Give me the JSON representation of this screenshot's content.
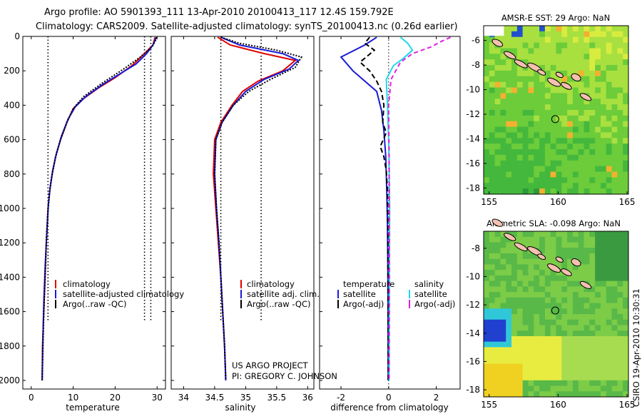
{
  "header": {
    "line1": "Argo profile: AO 5901393_111 13-Apr-2010 20100413_117 12.4S 159.792E",
    "line2": "Climatology: CARS2009. Satellite-adjusted climatology: synTS_20100413.nc (0.26d earlier)"
  },
  "credits": {
    "project": "US ARGO PROJECT",
    "pi": "PI: GREGORY C. JOHNSON",
    "timestamp": "CSIRO 19-Apr-2010 10:30:31"
  },
  "colors": {
    "climatology": "#e00000",
    "satellite": "#1a1ad6",
    "argo": "#000000",
    "salinity_satellite": "#22d8e8",
    "salinity_argo": "#e020e0"
  },
  "chart_data": [
    {
      "type": "line",
      "panel": "temperature",
      "xlabel": "temperature",
      "xlim": [
        -2,
        32
      ],
      "ylim": [
        2050,
        0
      ],
      "xticks": [
        0,
        10,
        20,
        30
      ],
      "yticks": [
        0,
        200,
        400,
        600,
        800,
        1000,
        1200,
        1400,
        1600,
        1800,
        2000
      ],
      "grid": false,
      "legend": {
        "placement": "lower-right",
        "entries": [
          "climatology",
          "satellite-adjusted climatology",
          "Argo(..raw -QC)"
        ]
      },
      "series": [
        {
          "name": "climatology",
          "points": [
            [
              29.5,
              5
            ],
            [
              29,
              50
            ],
            [
              27,
              100
            ],
            [
              24,
              170
            ],
            [
              20,
              240
            ],
            [
              16,
              300
            ],
            [
              12,
              370
            ],
            [
              10,
              420
            ],
            [
              8.5,
              500
            ],
            [
              7,
              600
            ],
            [
              5.8,
              700
            ],
            [
              5,
              800
            ],
            [
              4.4,
              900
            ],
            [
              4,
              1000
            ],
            [
              3.6,
              1200
            ],
            [
              3.3,
              1400
            ],
            [
              3,
              1600
            ],
            [
              2.7,
              1800
            ],
            [
              2.6,
              2000
            ]
          ]
        },
        {
          "name": "satellite-adjusted climatology",
          "points": [
            [
              29.8,
              5
            ],
            [
              29,
              50
            ],
            [
              27.5,
              100
            ],
            [
              25,
              160
            ],
            [
              21,
              220
            ],
            [
              17,
              280
            ],
            [
              13,
              350
            ],
            [
              10.5,
              410
            ],
            [
              8.8,
              480
            ],
            [
              7.2,
              580
            ],
            [
              6,
              680
            ],
            [
              5.1,
              780
            ],
            [
              4.5,
              880
            ],
            [
              4.1,
              980
            ],
            [
              3.7,
              1150
            ],
            [
              3.3,
              1350
            ],
            [
              3,
              1550
            ],
            [
              2.8,
              1750
            ],
            [
              2.6,
              2000
            ]
          ]
        },
        {
          "name": "Argo(..raw -QC)",
          "points": [
            [
              29.9,
              5
            ],
            [
              29.5,
              30
            ],
            [
              28.8,
              60
            ],
            [
              26,
              120
            ],
            [
              22,
              190
            ],
            [
              17,
              270
            ],
            [
              12.5,
              350
            ],
            [
              10,
              420
            ],
            [
              8.5,
              500
            ],
            [
              7,
              600
            ],
            [
              5.8,
              700
            ],
            [
              5,
              800
            ],
            [
              4.4,
              900
            ],
            [
              4,
              1000
            ],
            [
              3.6,
              1200
            ],
            [
              3.3,
              1400
            ],
            [
              3,
              1600
            ],
            [
              2.8,
              1800
            ],
            [
              2.6,
              2000
            ]
          ]
        }
      ],
      "reference_lines": {
        "x": [
          4,
          27,
          28.5
        ],
        "depth_range": [
          0,
          1650
        ]
      }
    },
    {
      "type": "line",
      "panel": "salinity",
      "xlabel": "salinity",
      "xlim": [
        33.8,
        36.1
      ],
      "ylim": [
        2050,
        0
      ],
      "xticks": [
        34,
        34.5,
        35,
        35.5,
        36
      ],
      "tick_labels": [
        "34",
        "34.5",
        "35",
        "35.5",
        "36"
      ],
      "grid": false,
      "legend": {
        "placement": "lower-right",
        "entries": [
          "climatology",
          "satellite adj. clim.",
          "Argo(..raw -QC)"
        ]
      },
      "series": [
        {
          "name": "climatology",
          "points": [
            [
              34.55,
              5
            ],
            [
              34.75,
              50
            ],
            [
              35.3,
              100
            ],
            [
              35.8,
              140
            ],
            [
              35.6,
              200
            ],
            [
              35.2,
              260
            ],
            [
              34.95,
              320
            ],
            [
              34.78,
              400
            ],
            [
              34.6,
              500
            ],
            [
              34.5,
              600
            ],
            [
              34.48,
              800
            ],
            [
              34.52,
              1000
            ],
            [
              34.56,
              1200
            ],
            [
              34.6,
              1400
            ],
            [
              34.63,
              1600
            ],
            [
              34.66,
              1800
            ],
            [
              34.68,
              2000
            ]
          ]
        },
        {
          "name": "satellite adj. clim.",
          "points": [
            [
              34.6,
              5
            ],
            [
              34.9,
              50
            ],
            [
              35.6,
              100
            ],
            [
              35.85,
              140
            ],
            [
              35.7,
              190
            ],
            [
              35.3,
              250
            ],
            [
              35.0,
              320
            ],
            [
              34.8,
              400
            ],
            [
              34.62,
              500
            ],
            [
              34.52,
              600
            ],
            [
              34.5,
              800
            ],
            [
              34.53,
              1000
            ],
            [
              34.57,
              1200
            ],
            [
              34.6,
              1400
            ],
            [
              34.63,
              1600
            ],
            [
              34.66,
              1800
            ],
            [
              34.68,
              2000
            ]
          ]
        },
        {
          "name": "Argo(..raw -QC)",
          "points": [
            [
              34.6,
              5
            ],
            [
              34.9,
              40
            ],
            [
              35.5,
              80
            ],
            [
              35.9,
              120
            ],
            [
              35.8,
              180
            ],
            [
              35.4,
              250
            ],
            [
              35.05,
              320
            ],
            [
              34.8,
              400
            ],
            [
              34.62,
              500
            ],
            [
              34.52,
              600
            ],
            [
              34.5,
              800
            ],
            [
              34.53,
              1000
            ],
            [
              34.57,
              1200
            ],
            [
              34.6,
              1400
            ],
            [
              34.63,
              1600
            ],
            [
              34.66,
              1800
            ],
            [
              34.68,
              2000
            ]
          ]
        }
      ],
      "reference_lines": {
        "x": [
          34.6,
          35.25
        ],
        "depth_range": [
          0,
          1650
        ]
      }
    },
    {
      "type": "line",
      "panel": "difference",
      "xlabel": "difference from climatology",
      "xlim": [
        -2.9,
        3
      ],
      "ylim": [
        2050,
        0
      ],
      "xticks": [
        -2,
        0,
        2
      ],
      "tick_labels": [
        "-2",
        "0",
        "2"
      ],
      "grid": false,
      "legend": {
        "placement": "lower-right",
        "headings": [
          "temperature",
          "salinity"
        ],
        "entries": [
          "satellite",
          "Argo(-adj)",
          "satellite",
          "Argo(-adj)"
        ]
      },
      "series": [
        {
          "name": "temperature satellite",
          "points": [
            [
              -0.5,
              5
            ],
            [
              -1.0,
              50
            ],
            [
              -2.0,
              120
            ],
            [
              -1.5,
              200
            ],
            [
              -0.5,
              320
            ],
            [
              -0.3,
              430
            ],
            [
              -0.2,
              550
            ],
            [
              -0.12,
              700
            ],
            [
              -0.08,
              900
            ],
            [
              -0.05,
              1100
            ],
            [
              -0.03,
              1400
            ],
            [
              -0.02,
              2000
            ]
          ]
        },
        {
          "name": "temperature Argo(-adj)",
          "points": [
            [
              -0.8,
              5
            ],
            [
              -1.0,
              40
            ],
            [
              -0.6,
              80
            ],
            [
              -1.2,
              150
            ],
            [
              -0.8,
              200
            ],
            [
              -0.5,
              260
            ],
            [
              -0.3,
              320
            ],
            [
              -0.2,
              400
            ],
            [
              -0.25,
              500
            ],
            [
              -0.1,
              560
            ],
            [
              -0.35,
              640
            ],
            [
              -0.2,
              700
            ],
            [
              -0.1,
              780
            ],
            [
              -0.05,
              900
            ],
            [
              -0.03,
              1200
            ],
            [
              -0.02,
              2000
            ]
          ]
        },
        {
          "name": "salinity satellite",
          "points": [
            [
              0.5,
              5
            ],
            [
              0.8,
              40
            ],
            [
              1.0,
              80
            ],
            [
              0.6,
              130
            ],
            [
              0.2,
              170
            ],
            [
              -0.1,
              250
            ],
            [
              -0.05,
              400
            ],
            [
              0.02,
              700
            ],
            [
              0.04,
              1000
            ],
            [
              0.03,
              1500
            ],
            [
              0.02,
              2000
            ]
          ]
        },
        {
          "name": "salinity Argo(-adj)",
          "points": [
            [
              2.6,
              5
            ],
            [
              2.2,
              30
            ],
            [
              1.8,
              60
            ],
            [
              1.0,
              100
            ],
            [
              0.5,
              150
            ],
            [
              0.1,
              250
            ],
            [
              0.0,
              400
            ],
            [
              0.02,
              700
            ],
            [
              0.03,
              1000
            ],
            [
              0.03,
              1500
            ],
            [
              0.02,
              2000
            ]
          ]
        }
      ]
    },
    {
      "type": "heatmap",
      "panel": "sst",
      "title": "AMSR-E SST: 29 Argo: NaN",
      "xlim": [
        154.6,
        165.1
      ],
      "ylim": [
        -18.5,
        -4.8
      ],
      "xticks": [
        155,
        160,
        165
      ],
      "yticks": [
        -6,
        -8,
        -10,
        -12,
        -14,
        -16,
        -18
      ],
      "argo_position": [
        159.792,
        -12.4
      ],
      "colors": [
        "#2a9a3a",
        "#44b83c",
        "#6ccc3a",
        "#a8e040",
        "#d8ec40",
        "#f0e020",
        "#f4b030",
        "#2050d0",
        "#ffffff"
      ]
    },
    {
      "type": "heatmap",
      "panel": "sla",
      "title": "Altimetric SLA: -0.098 Argo: NaN",
      "xlim": [
        154.6,
        165.1
      ],
      "ylim": [
        -18.5,
        -6.8
      ],
      "xticks": [
        155,
        160,
        165
      ],
      "yticks": [
        -8,
        -10,
        -12,
        -14,
        -16,
        -18
      ],
      "argo_position": [
        159.792,
        -12.4
      ],
      "colors": [
        "#3a9a40",
        "#58b848",
        "#7ccc48",
        "#a8dc50",
        "#e8ec40",
        "#f0d020",
        "#30c8d8",
        "#2040d0"
      ]
    }
  ]
}
